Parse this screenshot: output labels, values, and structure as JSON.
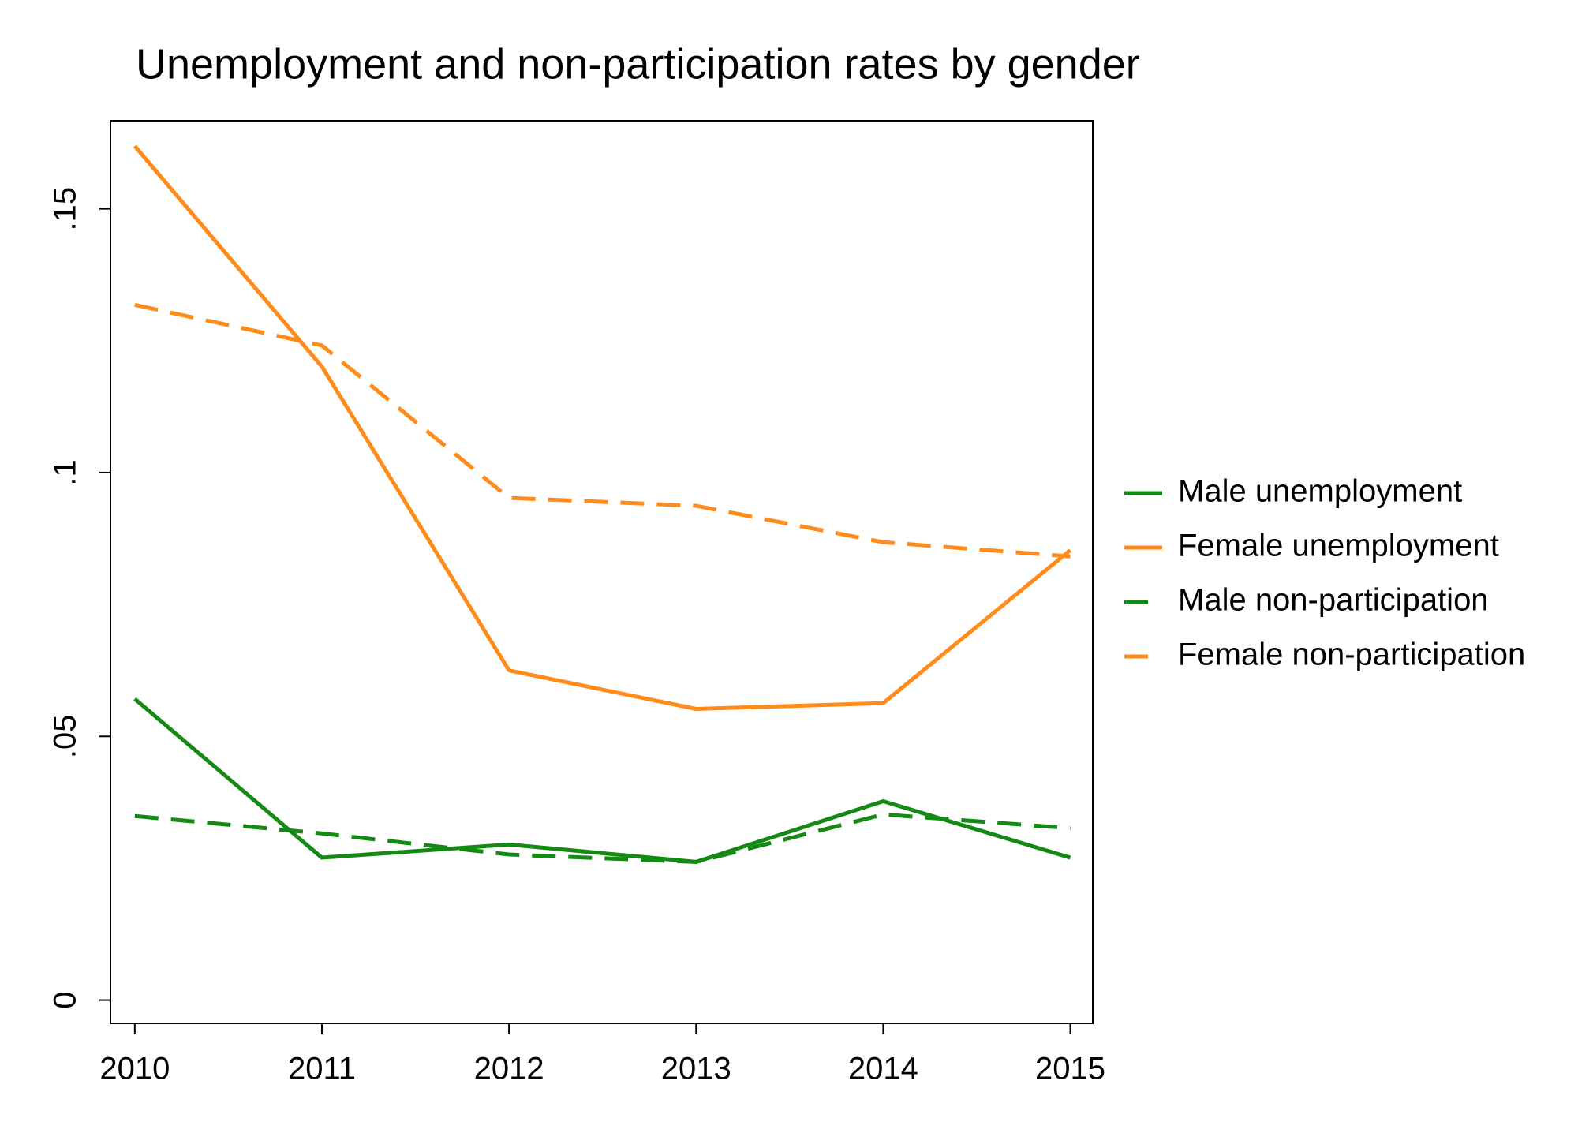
{
  "chart_data": {
    "type": "line",
    "title": "Unemployment and non-participation rates by gender",
    "x": [
      2010,
      2011,
      2012,
      2013,
      2014,
      2015
    ],
    "xlim": [
      2009.87,
      2015.12
    ],
    "xticks": [
      2010,
      2011,
      2012,
      2013,
      2014,
      2015
    ],
    "ylim": [
      -0.0044,
      0.1667
    ],
    "yticks": [
      0,
      {
        "value": 0.05,
        "label": ".05"
      },
      {
        "value": 0.1,
        "label": ".1"
      },
      {
        "value": 0.15,
        "label": ".15"
      }
    ],
    "grid": false,
    "legend": "right",
    "series": [
      {
        "name": "Male unemployment",
        "color": "#148a14",
        "dashed": false,
        "values": [
          0.0571,
          0.027,
          0.0295,
          0.0262,
          0.0377,
          0.027
        ]
      },
      {
        "name": "Female unemployment",
        "color": "#ff8c1a",
        "dashed": false,
        "values": [
          0.1619,
          0.1201,
          0.0625,
          0.0552,
          0.0563,
          0.0853
        ]
      },
      {
        "name": "Male non-participation",
        "color": "#148a14",
        "dashed": true,
        "values": [
          0.0349,
          0.0316,
          0.0276,
          0.0262,
          0.0352,
          0.0326
        ]
      },
      {
        "name": "Female non-participation",
        "color": "#ff8c1a",
        "dashed": true,
        "values": [
          0.1318,
          0.1241,
          0.0952,
          0.0937,
          0.0868,
          0.0841
        ]
      }
    ]
  }
}
